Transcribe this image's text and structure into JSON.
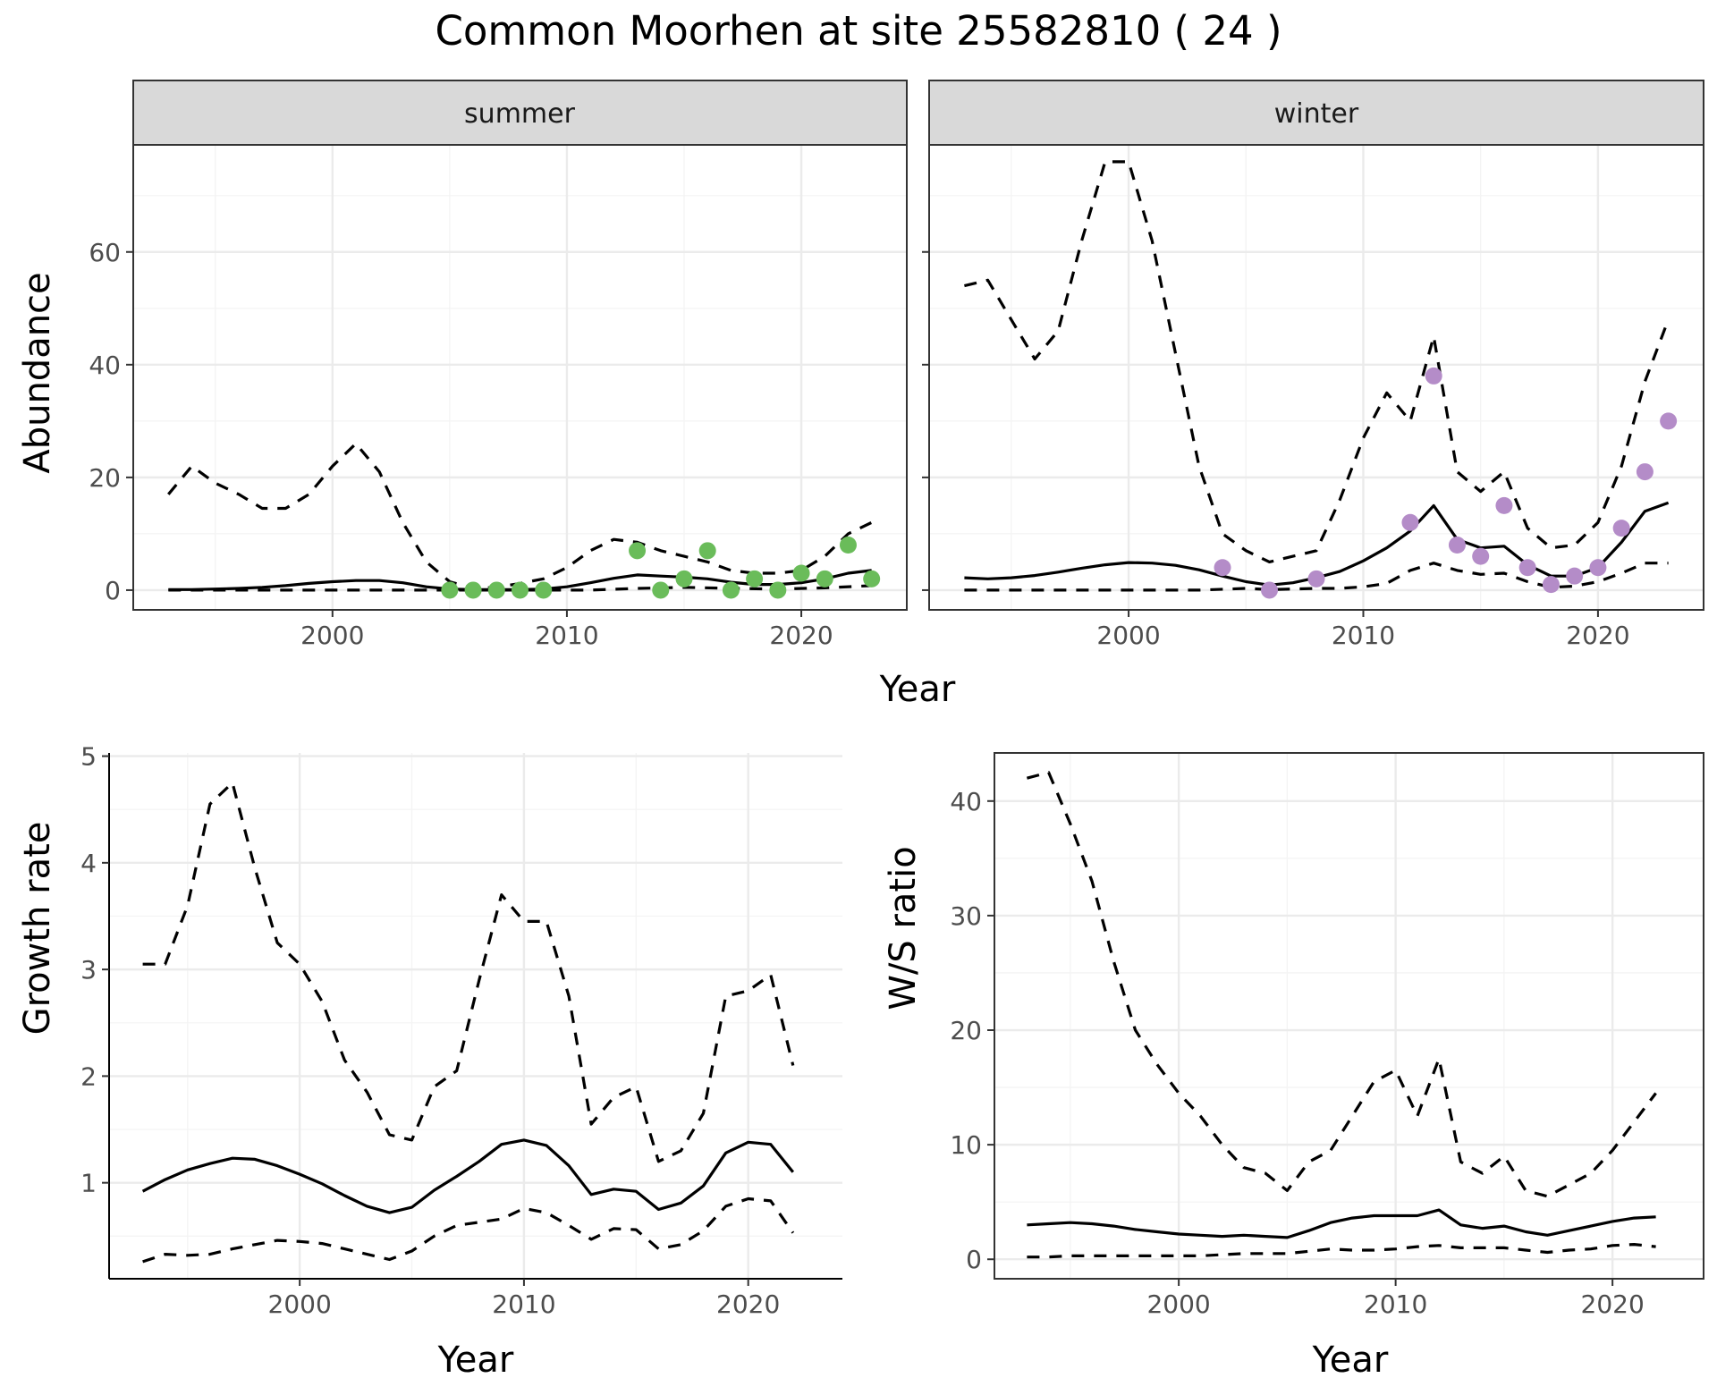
{
  "figure": {
    "title": "Common Moorhen at site 25582810 ( 24 )"
  },
  "chart_data": [
    {
      "type": "line",
      "panel": "summer",
      "strip_label": "summer",
      "xlabel": "",
      "ylabel": "Abundance",
      "xlim": [
        1991.5,
        2024.5
      ],
      "ylim": [
        -3.5,
        79
      ],
      "xticks": [
        2000,
        2010,
        2020
      ],
      "yticks": [
        0,
        20,
        40,
        60
      ],
      "series": [
        {
          "style": "solid",
          "x": [
            1993,
            1994,
            1995,
            1996,
            1997,
            1998,
            1999,
            2000,
            2001,
            2002,
            2003,
            2004,
            2005,
            2006,
            2007,
            2008,
            2009,
            2010,
            2011,
            2012,
            2013,
            2014,
            2015,
            2016,
            2017,
            2018,
            2019,
            2020,
            2021,
            2022,
            2023
          ],
          "y": [
            0.1,
            0.1,
            0.2,
            0.3,
            0.5,
            0.8,
            1.2,
            1.5,
            1.7,
            1.7,
            1.3,
            0.6,
            0.2,
            0.1,
            0.1,
            0.1,
            0.2,
            0.6,
            1.3,
            2.1,
            2.7,
            2.5,
            2.3,
            2.0,
            1.4,
            1.0,
            1.0,
            1.3,
            2.0,
            3.0,
            3.5
          ]
        },
        {
          "style": "dashed",
          "x": [
            1993,
            1994,
            1995,
            1996,
            1997,
            1998,
            1999,
            2000,
            2001,
            2002,
            2003,
            2004,
            2005,
            2006,
            2007,
            2008,
            2009,
            2010,
            2011,
            2012,
            2013,
            2014,
            2015,
            2016,
            2017,
            2018,
            2019,
            2020,
            2021,
            2022,
            2023
          ],
          "y": [
            17,
            22,
            19,
            17,
            14.5,
            14.5,
            17,
            22,
            26,
            21,
            12,
            5,
            1.5,
            0.3,
            0.5,
            1.2,
            2,
            4,
            7,
            9,
            8.5,
            7,
            6,
            5,
            3.5,
            3,
            3,
            3.5,
            6,
            10,
            12
          ]
        },
        {
          "style": "dashed",
          "x": [
            1993,
            1995,
            1997,
            1999,
            2001,
            2003,
            2005,
            2007,
            2009,
            2011,
            2013,
            2015,
            2017,
            2019,
            2021,
            2023
          ],
          "y": [
            0,
            0,
            0,
            0,
            0,
            0,
            0,
            0,
            0,
            0,
            0.3,
            0.5,
            0.3,
            0.2,
            0.4,
            0.8
          ]
        }
      ],
      "points": {
        "color": "#6abc5a",
        "x": [
          2005,
          2006,
          2007,
          2008,
          2009,
          2013,
          2014,
          2015,
          2016,
          2017,
          2018,
          2019,
          2020,
          2021,
          2022,
          2023
        ],
        "y": [
          0,
          0,
          0,
          0,
          0,
          7,
          0,
          2,
          7,
          0,
          2,
          0,
          3,
          2,
          8,
          2
        ]
      }
    },
    {
      "type": "line",
      "panel": "winter",
      "strip_label": "winter",
      "xlabel": "",
      "ylabel": "",
      "xlim": [
        1991.5,
        2024.5
      ],
      "ylim": [
        -3.5,
        79
      ],
      "xticks": [
        2000,
        2010,
        2020
      ],
      "yticks": [
        0,
        20,
        40,
        60
      ],
      "series": [
        {
          "style": "solid",
          "x": [
            1993,
            1994,
            1995,
            1996,
            1997,
            1998,
            1999,
            2000,
            2001,
            2002,
            2003,
            2004,
            2005,
            2006,
            2007,
            2008,
            2009,
            2010,
            2011,
            2012,
            2013,
            2014,
            2015,
            2016,
            2017,
            2018,
            2019,
            2020,
            2021,
            2022,
            2023
          ],
          "y": [
            2.2,
            2.0,
            2.2,
            2.6,
            3.2,
            3.9,
            4.5,
            4.9,
            4.8,
            4.4,
            3.6,
            2.5,
            1.5,
            0.9,
            1.3,
            2.2,
            3.3,
            5.2,
            7.5,
            10.5,
            15,
            9,
            7.5,
            7.8,
            4.5,
            2.5,
            2.5,
            4,
            8.5,
            14,
            15.5
          ]
        },
        {
          "style": "dashed",
          "x": [
            1993,
            1994,
            1995,
            1996,
            1997,
            1998,
            1999,
            2000,
            2001,
            2002,
            2003,
            2004,
            2005,
            2006,
            2007,
            2008,
            2009,
            2010,
            2011,
            2012,
            2013,
            2014,
            2015,
            2016,
            2017,
            2018,
            2019,
            2020,
            2021,
            2022,
            2023
          ],
          "y": [
            54,
            55,
            48,
            41,
            46,
            62,
            76,
            76,
            62,
            42,
            22,
            10,
            7,
            5,
            6,
            7,
            16,
            27,
            35,
            30,
            45,
            21,
            17.5,
            21,
            11,
            7.5,
            8,
            12,
            22,
            37,
            48
          ]
        },
        {
          "style": "dashed",
          "x": [
            1993,
            1995,
            1997,
            1999,
            2001,
            2003,
            2005,
            2006,
            2007,
            2008,
            2009,
            2010,
            2011,
            2012,
            2013,
            2014,
            2015,
            2016,
            2017,
            2018,
            2019,
            2020,
            2021,
            2022,
            2023
          ],
          "y": [
            0,
            0,
            0,
            0,
            0,
            0,
            0.3,
            0.1,
            0.2,
            0.3,
            0.3,
            0.6,
            1.2,
            3.5,
            4.8,
            3.5,
            2.8,
            3,
            1.5,
            0.5,
            0.7,
            1.5,
            3,
            4.8,
            4.8
          ]
        }
      ],
      "points": {
        "color": "#b48cc8",
        "x": [
          2004,
          2006,
          2008,
          2012,
          2013,
          2014,
          2015,
          2016,
          2017,
          2018,
          2019,
          2020,
          2021,
          2022,
          2023
        ],
        "y": [
          4,
          0,
          2,
          12,
          38,
          8,
          6,
          15,
          4,
          1,
          2.5,
          4,
          11,
          21,
          30
        ]
      }
    },
    {
      "type": "line",
      "panel": "growth",
      "xlabel": "Year",
      "ylabel": "Growth rate",
      "xlim": [
        1991.5,
        2024.2
      ],
      "ylim": [
        0.1,
        5.03
      ],
      "xticks": [
        2000,
        2010,
        2020
      ],
      "yticks": [
        1,
        2,
        3,
        4,
        5
      ],
      "series": [
        {
          "style": "solid",
          "x": [
            1993,
            1994,
            1995,
            1996,
            1997,
            1998,
            1999,
            2000,
            2001,
            2002,
            2003,
            2004,
            2005,
            2006,
            2007,
            2008,
            2009,
            2010,
            2011,
            2012,
            2013,
            2014,
            2015,
            2016,
            2017,
            2018,
            2019,
            2020,
            2021,
            2022
          ],
          "y": [
            0.92,
            1.03,
            1.12,
            1.18,
            1.23,
            1.22,
            1.16,
            1.08,
            0.99,
            0.88,
            0.78,
            0.72,
            0.77,
            0.93,
            1.06,
            1.2,
            1.36,
            1.4,
            1.35,
            1.16,
            0.89,
            0.94,
            0.92,
            0.75,
            0.81,
            0.97,
            1.28,
            1.38,
            1.36,
            1.1
          ]
        },
        {
          "style": "dashed",
          "x": [
            1993,
            1994,
            1995,
            1996,
            1997,
            1998,
            1999,
            2000,
            2001,
            2002,
            2003,
            2004,
            2005,
            2006,
            2007,
            2008,
            2009,
            2010,
            2011,
            2012,
            2013,
            2014,
            2015,
            2016,
            2017,
            2018,
            2019,
            2020,
            2021,
            2022
          ],
          "y": [
            3.05,
            3.05,
            3.6,
            4.55,
            4.75,
            3.95,
            3.25,
            3.05,
            2.7,
            2.15,
            1.85,
            1.45,
            1.4,
            1.9,
            2.05,
            2.9,
            3.7,
            3.45,
            3.45,
            2.75,
            1.55,
            1.8,
            1.9,
            1.2,
            1.3,
            1.65,
            2.75,
            2.8,
            2.95,
            2.1
          ]
        },
        {
          "style": "dashed",
          "x": [
            1993,
            1994,
            1995,
            1996,
            1997,
            1998,
            1999,
            2000,
            2001,
            2002,
            2003,
            2004,
            2005,
            2006,
            2007,
            2008,
            2009,
            2010,
            2011,
            2012,
            2013,
            2014,
            2015,
            2016,
            2017,
            2018,
            2019,
            2020,
            2021,
            2022
          ],
          "y": [
            0.26,
            0.33,
            0.32,
            0.33,
            0.38,
            0.42,
            0.46,
            0.45,
            0.43,
            0.38,
            0.33,
            0.28,
            0.36,
            0.5,
            0.6,
            0.63,
            0.66,
            0.76,
            0.72,
            0.6,
            0.47,
            0.57,
            0.56,
            0.38,
            0.42,
            0.55,
            0.78,
            0.85,
            0.83,
            0.53
          ]
        }
      ]
    },
    {
      "type": "line",
      "panel": "ws_ratio",
      "xlabel": "Year",
      "ylabel": "W/S ratio",
      "xlim": [
        1991.5,
        2024.2
      ],
      "ylim": [
        -1.7,
        44.2
      ],
      "xticks": [
        2000,
        2010,
        2020
      ],
      "yticks": [
        0,
        10,
        20,
        30,
        40
      ],
      "series": [
        {
          "style": "solid",
          "x": [
            1993,
            1994,
            1995,
            1996,
            1997,
            1998,
            1999,
            2000,
            2001,
            2002,
            2003,
            2004,
            2005,
            2006,
            2007,
            2008,
            2009,
            2010,
            2011,
            2012,
            2013,
            2014,
            2015,
            2016,
            2017,
            2018,
            2019,
            2020,
            2021,
            2022
          ],
          "y": [
            3.0,
            3.1,
            3.2,
            3.1,
            2.9,
            2.6,
            2.4,
            2.2,
            2.1,
            2.0,
            2.1,
            2.0,
            1.9,
            2.5,
            3.2,
            3.6,
            3.8,
            3.8,
            3.8,
            4.3,
            3.0,
            2.7,
            2.9,
            2.4,
            2.1,
            2.5,
            2.9,
            3.3,
            3.6,
            3.7
          ]
        },
        {
          "style": "dashed",
          "x": [
            1993,
            1994,
            1995,
            1996,
            1997,
            1998,
            1999,
            2000,
            2001,
            2002,
            2003,
            2004,
            2005,
            2006,
            2007,
            2008,
            2009,
            2010,
            2011,
            2012,
            2013,
            2014,
            2015,
            2016,
            2017,
            2018,
            2019,
            2020,
            2021,
            2022
          ],
          "y": [
            42,
            42.5,
            38,
            33,
            26,
            20,
            17,
            14.5,
            12.5,
            10,
            8,
            7.5,
            6,
            8.5,
            9.5,
            12.5,
            15.5,
            16.5,
            12.5,
            17.5,
            8.5,
            7.5,
            9,
            6,
            5.5,
            6.5,
            7.5,
            9.5,
            12,
            14.5
          ]
        },
        {
          "style": "dashed",
          "x": [
            1993,
            1994,
            1995,
            1996,
            1997,
            1998,
            1999,
            2000,
            2001,
            2002,
            2003,
            2004,
            2005,
            2006,
            2007,
            2008,
            2009,
            2010,
            2011,
            2012,
            2013,
            2014,
            2015,
            2016,
            2017,
            2018,
            2019,
            2020,
            2021,
            2022
          ],
          "y": [
            0.2,
            0.2,
            0.3,
            0.3,
            0.3,
            0.3,
            0.3,
            0.3,
            0.3,
            0.4,
            0.5,
            0.5,
            0.5,
            0.7,
            0.9,
            0.8,
            0.8,
            0.9,
            1.1,
            1.2,
            1.0,
            1.0,
            1.0,
            0.8,
            0.6,
            0.8,
            0.9,
            1.2,
            1.3,
            1.1
          ]
        }
      ]
    }
  ],
  "shared_labels": {
    "top_xlabel": "Year"
  }
}
